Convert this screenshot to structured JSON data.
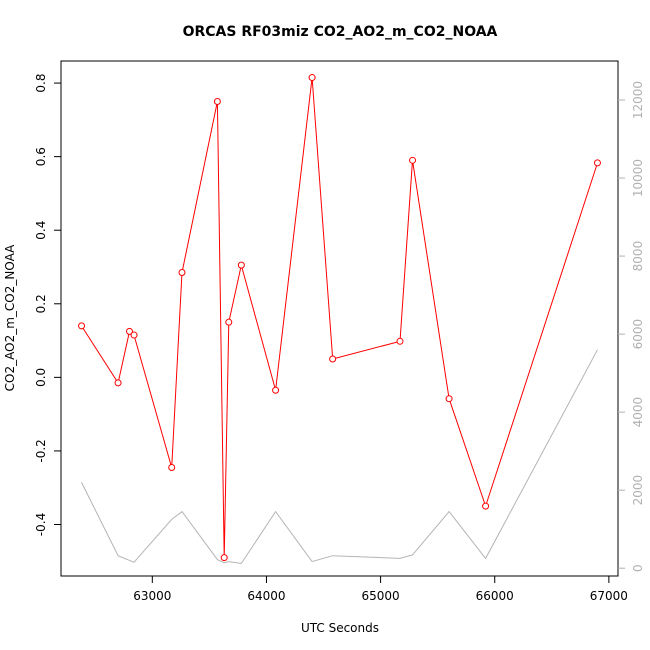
{
  "chart_data": {
    "type": "line",
    "title": "ORCAS RF03miz CO2_AO2_m_CO2_NOAA",
    "xlabel": "UTC Seconds",
    "ylabel": "CO2_AO2_m_CO2_NOAA",
    "xlim": [
      62200,
      67080
    ],
    "ylim": [
      -0.54,
      0.86
    ],
    "y2lim": [
      -200,
      13000
    ],
    "x_ticks": [
      63000,
      64000,
      65000,
      66000,
      67000
    ],
    "y_ticks": [
      -0.4,
      -0.2,
      0.0,
      0.2,
      0.4,
      0.6,
      0.8
    ],
    "y2_ticks": [
      0,
      2000,
      4000,
      6000,
      8000,
      10000,
      12000
    ],
    "x_tick_labels": [
      "63000",
      "64000",
      "65000",
      "66000",
      "67000"
    ],
    "y_tick_labels": [
      "-0.4",
      "-0.2",
      "0.0",
      "0.2",
      "0.4",
      "0.6",
      "0.8"
    ],
    "y2_tick_labels": [
      "0",
      "2000",
      "4000",
      "6000",
      "8000",
      "10000",
      "12000"
    ],
    "grid": false,
    "series": [
      {
        "axis": "left",
        "color": "#ff0000",
        "markers": "open-circle",
        "x": [
          62380,
          62700,
          62800,
          62840,
          63170,
          63260,
          63570,
          63630,
          63670,
          63780,
          64080,
          64400,
          64580,
          65170,
          65280,
          65600,
          65920,
          66900
        ],
        "y": [
          0.14,
          -0.015,
          0.125,
          0.115,
          -0.245,
          0.285,
          0.75,
          -0.49,
          0.15,
          0.305,
          -0.035,
          0.815,
          0.05,
          0.098,
          0.59,
          -0.058,
          -0.35,
          0.583
        ]
      },
      {
        "axis": "right",
        "color": "#b4b4b4",
        "markers": "none",
        "x": [
          62380,
          62700,
          62840,
          63170,
          63260,
          63570,
          63630,
          63670,
          63780,
          64080,
          64400,
          64580,
          65170,
          65280,
          65600,
          65920,
          66900
        ],
        "y": [
          2200,
          320,
          150,
          1250,
          1450,
          220,
          140,
          170,
          120,
          1450,
          170,
          320,
          250,
          340,
          1450,
          250,
          5600
        ]
      }
    ]
  }
}
